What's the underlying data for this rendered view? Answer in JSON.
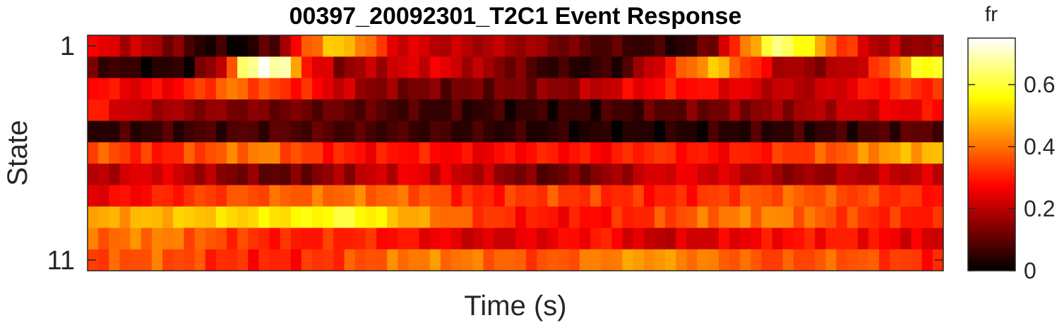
{
  "chart_data": {
    "type": "heatmap",
    "title": "00397_20092301_T2C1 Event Response",
    "xlabel": "Time (s)",
    "ylabel": "State",
    "y_tick_labels": [
      "1",
      "11"
    ],
    "y_ticks": [
      1,
      11
    ],
    "x_tick_labels": [],
    "rows": 11,
    "columns": 80,
    "colormap": "hot",
    "colorbar": {
      "label": "fr",
      "ticks": [
        0,
        0.2,
        0.4,
        0.6
      ],
      "tick_labels": [
        "0",
        "0.2",
        "0.4",
        "0.6"
      ],
      "range": [
        0,
        0.75
      ]
    },
    "row_profiles": [
      [
        [
          0,
          0.25
        ],
        [
          6,
          0.18
        ],
        [
          10,
          0.05
        ],
        [
          14,
          0.02
        ],
        [
          17,
          0.1
        ],
        [
          20,
          0.35
        ],
        [
          22,
          0.5
        ],
        [
          25,
          0.45
        ],
        [
          28,
          0.25
        ],
        [
          33,
          0.2
        ],
        [
          40,
          0.18
        ],
        [
          46,
          0.1
        ],
        [
          52,
          0.06
        ],
        [
          56,
          0.05
        ],
        [
          58,
          0.15
        ],
        [
          60,
          0.3
        ],
        [
          62,
          0.5
        ],
        [
          64,
          0.65
        ],
        [
          66,
          0.6
        ],
        [
          69,
          0.4
        ],
        [
          73,
          0.2
        ],
        [
          79,
          0.15
        ]
      ],
      [
        [
          0,
          0.1
        ],
        [
          5,
          0.02
        ],
        [
          9,
          0.05
        ],
        [
          12,
          0.2
        ],
        [
          14,
          0.6
        ],
        [
          16,
          0.75
        ],
        [
          18,
          0.65
        ],
        [
          20,
          0.3
        ],
        [
          23,
          0.15
        ],
        [
          27,
          0.2
        ],
        [
          32,
          0.25
        ],
        [
          38,
          0.15
        ],
        [
          43,
          0.05
        ],
        [
          49,
          0.05
        ],
        [
          53,
          0.25
        ],
        [
          56,
          0.4
        ],
        [
          58,
          0.5
        ],
        [
          61,
          0.35
        ],
        [
          64,
          0.2
        ],
        [
          67,
          0.15
        ],
        [
          71,
          0.2
        ],
        [
          74,
          0.35
        ],
        [
          77,
          0.55
        ],
        [
          79,
          0.6
        ]
      ],
      [
        [
          0,
          0.3
        ],
        [
          4,
          0.25
        ],
        [
          8,
          0.28
        ],
        [
          11,
          0.35
        ],
        [
          13,
          0.4
        ],
        [
          16,
          0.35
        ],
        [
          20,
          0.3
        ],
        [
          26,
          0.15
        ],
        [
          32,
          0.12
        ],
        [
          38,
          0.12
        ],
        [
          44,
          0.15
        ],
        [
          50,
          0.25
        ],
        [
          55,
          0.3
        ],
        [
          60,
          0.25
        ],
        [
          64,
          0.2
        ],
        [
          68,
          0.2
        ],
        [
          72,
          0.28
        ],
        [
          76,
          0.33
        ],
        [
          79,
          0.32
        ]
      ],
      [
        [
          0,
          0.3
        ],
        [
          4,
          0.2
        ],
        [
          10,
          0.15
        ],
        [
          18,
          0.12
        ],
        [
          25,
          0.1
        ],
        [
          30,
          0.07
        ],
        [
          40,
          0.05
        ],
        [
          48,
          0.06
        ],
        [
          54,
          0.1
        ],
        [
          60,
          0.14
        ],
        [
          66,
          0.17
        ],
        [
          72,
          0.22
        ],
        [
          79,
          0.28
        ]
      ],
      [
        [
          0,
          0.05
        ],
        [
          10,
          0.07
        ],
        [
          20,
          0.09
        ],
        [
          30,
          0.07
        ],
        [
          40,
          0.05
        ],
        [
          48,
          0.03
        ],
        [
          54,
          0.03
        ],
        [
          60,
          0.05
        ],
        [
          70,
          0.06
        ],
        [
          79,
          0.1
        ]
      ],
      [
        [
          0,
          0.38
        ],
        [
          6,
          0.3
        ],
        [
          12,
          0.38
        ],
        [
          16,
          0.42
        ],
        [
          20,
          0.33
        ],
        [
          26,
          0.28
        ],
        [
          30,
          0.3
        ],
        [
          36,
          0.26
        ],
        [
          42,
          0.3
        ],
        [
          48,
          0.28
        ],
        [
          52,
          0.33
        ],
        [
          58,
          0.28
        ],
        [
          64,
          0.32
        ],
        [
          70,
          0.38
        ],
        [
          74,
          0.45
        ],
        [
          79,
          0.48
        ]
      ],
      [
        [
          0,
          0.18
        ],
        [
          6,
          0.25
        ],
        [
          12,
          0.15
        ],
        [
          18,
          0.1
        ],
        [
          24,
          0.18
        ],
        [
          30,
          0.25
        ],
        [
          36,
          0.2
        ],
        [
          42,
          0.1
        ],
        [
          48,
          0.15
        ],
        [
          54,
          0.25
        ],
        [
          60,
          0.22
        ],
        [
          66,
          0.15
        ],
        [
          72,
          0.2
        ],
        [
          79,
          0.22
        ]
      ],
      [
        [
          0,
          0.25
        ],
        [
          6,
          0.3
        ],
        [
          12,
          0.35
        ],
        [
          18,
          0.38
        ],
        [
          24,
          0.4
        ],
        [
          30,
          0.38
        ],
        [
          36,
          0.3
        ],
        [
          42,
          0.35
        ],
        [
          48,
          0.33
        ],
        [
          54,
          0.3
        ],
        [
          60,
          0.35
        ],
        [
          66,
          0.38
        ],
        [
          72,
          0.35
        ],
        [
          79,
          0.3
        ]
      ],
      [
        [
          0,
          0.45
        ],
        [
          6,
          0.48
        ],
        [
          14,
          0.52
        ],
        [
          20,
          0.55
        ],
        [
          24,
          0.6
        ],
        [
          28,
          0.5
        ],
        [
          32,
          0.42
        ],
        [
          36,
          0.35
        ],
        [
          40,
          0.3
        ],
        [
          46,
          0.28
        ],
        [
          52,
          0.33
        ],
        [
          58,
          0.4
        ],
        [
          64,
          0.42
        ],
        [
          70,
          0.35
        ],
        [
          74,
          0.32
        ],
        [
          79,
          0.3
        ]
      ],
      [
        [
          0,
          0.38
        ],
        [
          6,
          0.42
        ],
        [
          12,
          0.35
        ],
        [
          18,
          0.3
        ],
        [
          24,
          0.32
        ],
        [
          30,
          0.28
        ],
        [
          36,
          0.22
        ],
        [
          42,
          0.25
        ],
        [
          48,
          0.3
        ],
        [
          52,
          0.2
        ],
        [
          58,
          0.24
        ],
        [
          64,
          0.28
        ],
        [
          70,
          0.3
        ],
        [
          76,
          0.25
        ],
        [
          79,
          0.22
        ]
      ],
      [
        [
          0,
          0.35
        ],
        [
          6,
          0.38
        ],
        [
          12,
          0.32
        ],
        [
          18,
          0.3
        ],
        [
          24,
          0.35
        ],
        [
          30,
          0.42
        ],
        [
          36,
          0.4
        ],
        [
          42,
          0.35
        ],
        [
          48,
          0.42
        ],
        [
          52,
          0.45
        ],
        [
          58,
          0.4
        ],
        [
          64,
          0.35
        ],
        [
          70,
          0.38
        ],
        [
          76,
          0.33
        ],
        [
          79,
          0.3
        ]
      ]
    ]
  }
}
